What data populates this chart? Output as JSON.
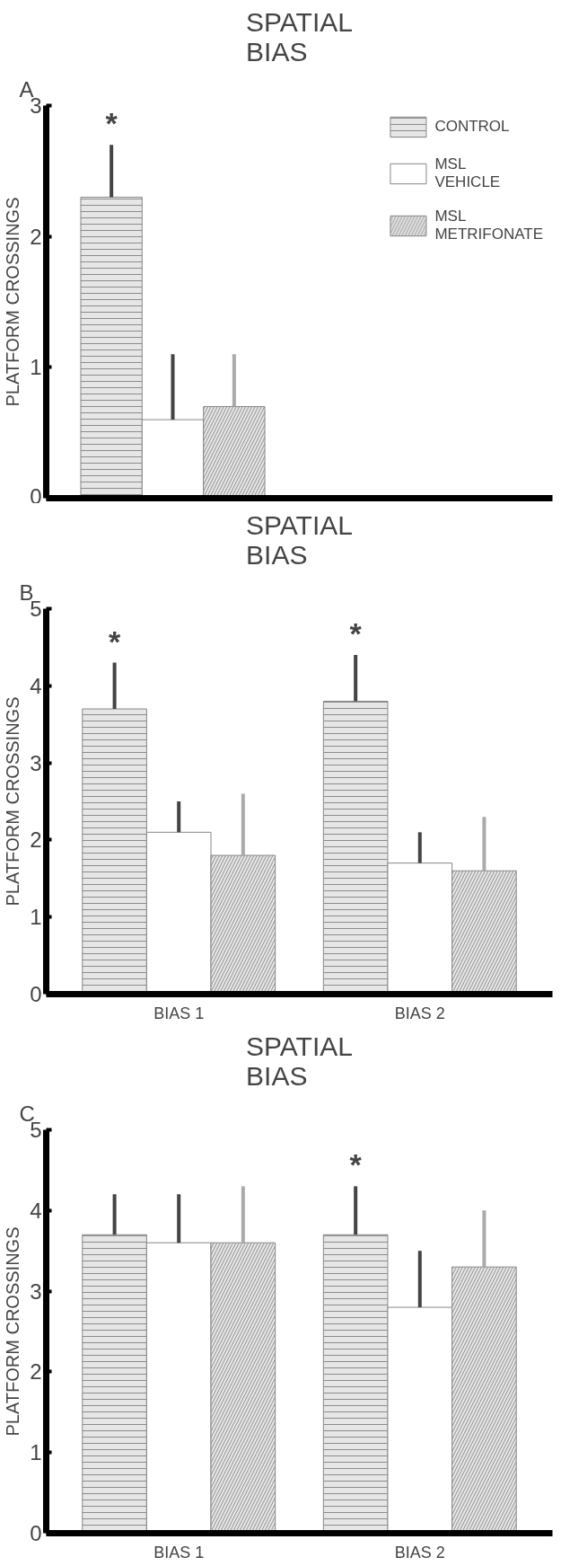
{
  "chart_data": [
    {
      "type": "bar",
      "title": "SPATIAL\nBIAS",
      "ylabel": "PLATFORM CROSSINGS",
      "categories": [
        null
      ],
      "series": [
        {
          "name": "CONTROL",
          "color": "#e6e6e6",
          "values": [
            2.3
          ],
          "errors": [
            [
              2.3,
              2.7
            ]
          ],
          "value_labels": [
            "*"
          ]
        },
        {
          "name": "MSL\nVEHICLE",
          "color": "#ffffff",
          "values": [
            0.6
          ],
          "errors": [
            [
              0.6,
              1.1
            ]
          ]
        },
        {
          "name": "MSL\nMETRIFONATE",
          "color": "#e6e6e6",
          "values": [
            0.7
          ],
          "errors": [
            [
              0.7,
              1.1
            ]
          ]
        }
      ],
      "ylim": [
        0,
        3
      ],
      "yticks": [
        0,
        1,
        2,
        3
      ],
      "grid": false,
      "legend": "top right",
      "annotations": [
        "A"
      ]
    },
    {
      "type": "bar",
      "title": "SPATIAL\nBIAS",
      "ylabel": "PLATFORM CROSSINGS",
      "categories": [
        "BIAS 1",
        "BIAS 2"
      ],
      "series": [
        {
          "color": "#e6e6e6",
          "values": [
            3.7,
            3.8
          ],
          "errors": [
            [
              3.7,
              4.3
            ],
            [
              3.8,
              4.4
            ]
          ],
          "value_labels": [
            "*",
            "*"
          ]
        },
        {
          "color": "#ffffff",
          "values": [
            2.1,
            1.7
          ],
          "errors": [
            [
              2.1,
              2.5
            ],
            [
              1.7,
              2.1
            ]
          ]
        },
        {
          "color": "#e6e6e6",
          "values": [
            1.8,
            1.6
          ],
          "errors": [
            [
              1.8,
              2.6
            ],
            [
              1.6,
              2.3
            ]
          ]
        }
      ],
      "ylim": [
        0,
        5
      ],
      "yticks": [
        0,
        1,
        2,
        3,
        4,
        5
      ],
      "grid": false,
      "annotations": [
        "B"
      ]
    },
    {
      "type": "bar",
      "title": "SPATIAL\nBIAS",
      "ylabel": "PLATFORM CROSSINGS",
      "categories": [
        "BIAS 1",
        "BIAS 2"
      ],
      "series": [
        {
          "color": "#e6e6e6",
          "values": [
            3.7,
            3.7
          ],
          "errors": [
            [
              3.7,
              4.2
            ],
            [
              3.7,
              4.3
            ]
          ],
          "value_labels": [
            null,
            "*"
          ]
        },
        {
          "color": "#ffffff",
          "values": [
            3.6,
            2.8
          ],
          "errors": [
            [
              3.6,
              4.2
            ],
            [
              2.8,
              3.5
            ]
          ]
        },
        {
          "color": "#e6e6e6",
          "values": [
            3.6,
            3.3
          ],
          "errors": [
            [
              3.6,
              4.3
            ],
            [
              3.3,
              4.0
            ]
          ]
        }
      ],
      "ylim": [
        0,
        5
      ],
      "yticks": [
        0,
        1,
        2,
        3,
        4,
        5
      ],
      "grid": false,
      "annotations": [
        "C"
      ]
    }
  ]
}
